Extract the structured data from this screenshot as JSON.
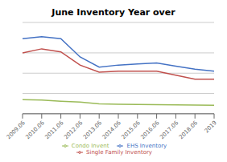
{
  "chart_data": {
    "type": "line",
    "title": "June Inventory Year over",
    "categories": [
      "2009.06",
      "2010.06",
      "2011.06",
      "2012.06",
      "2013.06",
      "2014.06",
      "2015.06",
      "2016.06",
      "2017.06",
      "2018.06",
      "2019"
    ],
    "series": [
      {
        "name": "EHS Inventory",
        "color": "#4472C4",
        "values": [
          3700,
          3800,
          3700,
          2800,
          2300,
          2400,
          2450,
          2500,
          2350,
          2200,
          2100
        ]
      },
      {
        "name": "Single Family Inventory",
        "color": "#C0504D",
        "values": [
          3000,
          3200,
          3050,
          2400,
          2050,
          2100,
          2100,
          2100,
          1900,
          1700,
          1700
        ]
      },
      {
        "name": "Condo Invent",
        "color": "#9BBB59",
        "values": [
          700,
          680,
          620,
          580,
          490,
          470,
          460,
          450,
          440,
          430,
          420
        ]
      }
    ],
    "ylim": [
      0,
      4500
    ],
    "yticks": [
      0,
      500,
      1000,
      1500,
      2000,
      2500,
      3000,
      3500,
      4000,
      4500
    ],
    "grid": true,
    "tick_labels": "x",
    "legend": "bottom"
  }
}
